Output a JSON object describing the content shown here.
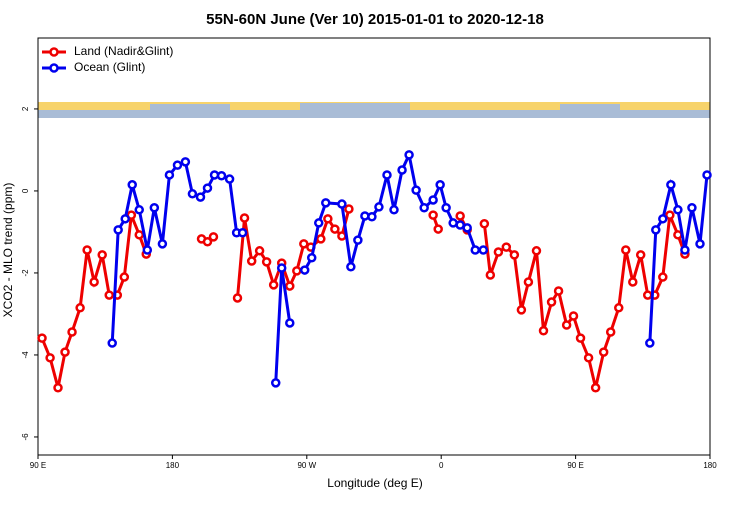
{
  "chart_data": {
    "type": "line",
    "title": "55N-60N June (Ver 10)   2015-01-01 to 2020-12-18",
    "x_label": "Longitude (deg E)",
    "y_label": "XCO2 - MLO trend (ppm)",
    "xlim": [
      90,
      540
    ],
    "ylim": [
      -6.44,
      3.73
    ],
    "xticks": [
      {
        "value": 90,
        "label": "90 E"
      },
      180,
      {
        "value": 270,
        "label": "90 W"
      },
      {
        "value": 360,
        "label": "0"
      },
      {
        "value": 450,
        "label": "90 E"
      },
      {
        "value": 540,
        "label": "180"
      }
    ],
    "yticks": [
      -6,
      -4,
      -2,
      0,
      2
    ],
    "legend": "top-left",
    "series": [
      {
        "name": "Land (Nadir&Glint)",
        "color": "#ee0000",
        "x": [
          92.7,
          98.1,
          103.4,
          108.1,
          112.8,
          118.2,
          122.9,
          127.6,
          133.0,
          137.7,
          143.1,
          147.8,
          152.5,
          157.8,
          162.5,
          null,
          199.5,
          203.5,
          207.5,
          null,
          223.6,
          228.3,
          233.1,
          238.4,
          243.1,
          247.8,
          253.2,
          258.6,
          263.3,
          268.0,
          272.7,
          279.4,
          284.1,
          288.8,
          293.5,
          298.2,
          null,
          354.6,
          358.0,
          null,
          372.7,
          377.4,
          null,
          388.9,
          392.9,
          398.3,
          403.6,
          409.0,
          413.7,
          418.4,
          423.8,
          428.5,
          433.9,
          438.6,
          444.0,
          448.6,
          453.3,
          458.7,
          463.4,
          468.8,
          473.5,
          478.9,
          483.6,
          488.3,
          493.6,
          498.3,
          503.0,
          508.4,
          513.1,
          518.5,
          523.2
        ],
        "values": [
          -3.59,
          -4.07,
          -4.8,
          -3.93,
          -3.44,
          -2.85,
          -1.44,
          -2.22,
          -1.56,
          -2.54,
          -2.54,
          -2.1,
          -0.59,
          -1.07,
          -1.54,
          null,
          -1.17,
          -1.24,
          -1.12,
          null,
          -2.61,
          -0.66,
          -1.71,
          -1.46,
          -1.73,
          -2.29,
          -1.76,
          -2.32,
          -1.95,
          -1.29,
          -1.37,
          -1.17,
          -0.68,
          -0.93,
          -1.1,
          -0.44,
          null,
          -0.59,
          -0.93,
          null,
          -0.61,
          -0.95,
          null,
          -0.8,
          -2.05,
          -1.49,
          -1.37,
          -1.56,
          -2.9,
          -2.22,
          -1.46,
          -3.41,
          -2.71,
          -2.44,
          -3.27,
          -3.05,
          -3.59,
          -4.07,
          -4.8,
          -3.93,
          -3.44,
          -2.85,
          -1.44,
          -2.22,
          -1.56,
          -2.54,
          -2.54,
          -2.1,
          -0.59,
          -1.07,
          -1.54
        ]
      },
      {
        "name": "Ocean (Glint)",
        "color": "#0000ee",
        "x": [
          139.7,
          143.7,
          148.4,
          153.1,
          157.8,
          163.2,
          167.9,
          173.3,
          178.0,
          183.4,
          188.7,
          193.4,
          198.8,
          203.5,
          208.2,
          212.9,
          218.3,
          223.0,
          227.0,
          null,
          249.2,
          253.2,
          258.6,
          null,
          268.6,
          273.3,
          278.0,
          282.7,
          293.5,
          299.5,
          304.2,
          308.9,
          313.6,
          318.3,
          323.7,
          328.4,
          333.8,
          338.5,
          343.2,
          348.6,
          354.6,
          359.3,
          363.3,
          368.0,
          372.7,
          377.4,
          382.8,
          388.2,
          null,
          499.7,
          503.7,
          508.4,
          513.8,
          518.5,
          523.2,
          527.9,
          533.3,
          538.0
        ],
        "values": [
          -3.71,
          -0.95,
          -0.68,
          0.15,
          -0.46,
          -1.44,
          -0.41,
          -1.29,
          0.39,
          0.63,
          0.71,
          -0.07,
          -0.15,
          0.07,
          0.39,
          0.37,
          0.29,
          -1.02,
          -1.02,
          null,
          -4.68,
          -1.88,
          -3.22,
          null,
          -1.93,
          -1.63,
          -0.78,
          -0.29,
          -0.32,
          -1.85,
          -1.2,
          -0.61,
          -0.63,
          -0.39,
          0.39,
          -0.46,
          0.51,
          0.88,
          0.02,
          -0.41,
          -0.22,
          0.15,
          -0.41,
          -0.78,
          -0.83,
          -0.9,
          -1.44,
          -1.44,
          null,
          -3.71,
          -0.95,
          -0.68,
          0.15,
          -0.46,
          -1.44,
          -0.41,
          -1.29,
          0.39
        ]
      }
    ]
  }
}
